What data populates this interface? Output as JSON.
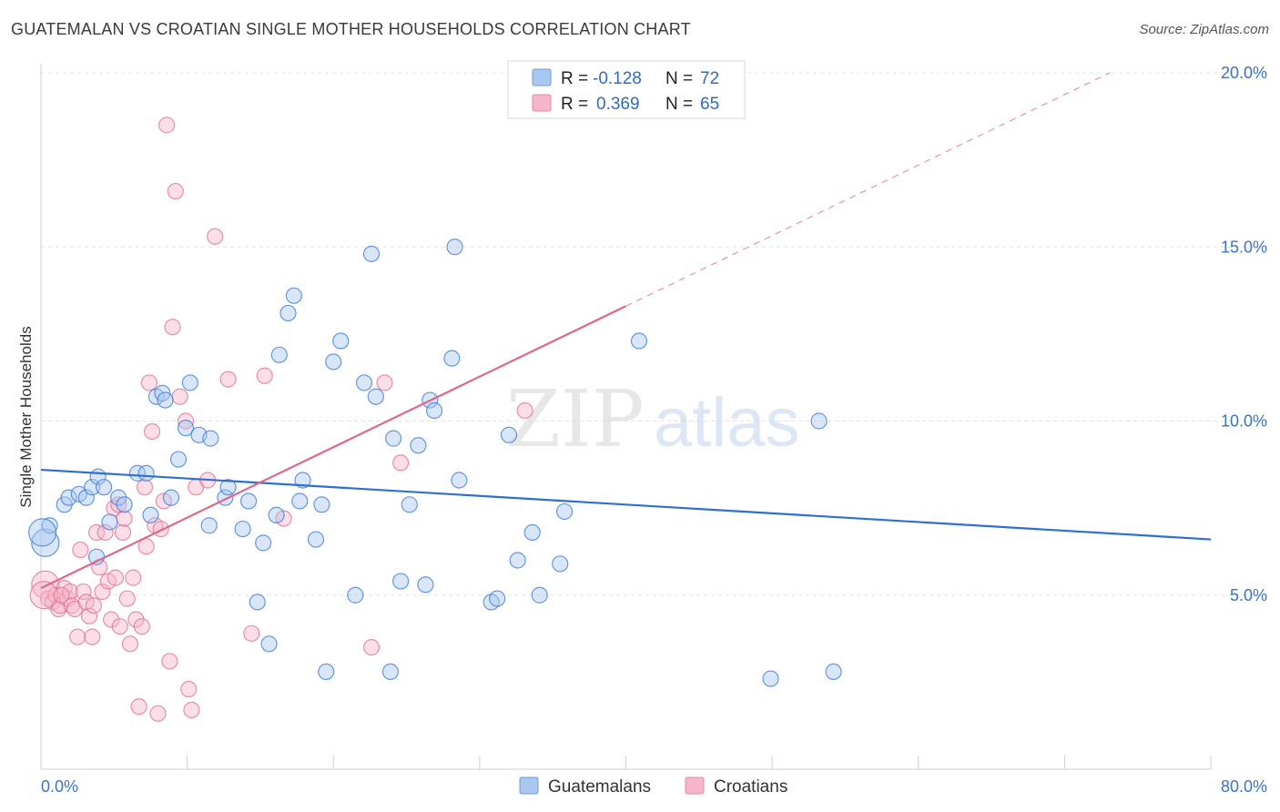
{
  "header": {
    "title": "GUATEMALAN VS CROATIAN SINGLE MOTHER HOUSEHOLDS CORRELATION CHART",
    "source": "Source: ZipAtlas.com"
  },
  "watermark": {
    "zip": "ZIP",
    "atlas": "atlas"
  },
  "legend": {
    "rows": [
      {
        "r_label": "R =",
        "r_value": "-0.128",
        "n_label": "N =",
        "n_value": "72",
        "color": "#a9c8f0"
      },
      {
        "r_label": "R =",
        "r_value": "0.369",
        "n_label": "N =",
        "n_value": "65",
        "color": "#f6b6c9"
      }
    ]
  },
  "bottom_legend": {
    "items": [
      "Guatemalans",
      "Croatians"
    ]
  },
  "chart_data": {
    "type": "scatter",
    "title": "GUATEMALAN VS CROATIAN SINGLE MOTHER HOUSEHOLDS CORRELATION CHART",
    "xlabel": "",
    "ylabel": "Single Mother Households",
    "xlim": [
      0,
      80
    ],
    "ylim": [
      0,
      20
    ],
    "x_tick_labels": [
      "0.0%",
      "80.0%"
    ],
    "y_ticks": [
      5,
      10,
      15,
      20
    ],
    "y_tick_labels": [
      "5.0%",
      "10.0%",
      "15.0%",
      "20.0%"
    ],
    "grid": true,
    "legend_position": "top-center",
    "series": [
      {
        "name": "Guatemalans",
        "color": "#3a78d4",
        "fill": "#a9c8f0",
        "r": -0.128,
        "n": 72,
        "trend": {
          "x": [
            0,
            80
          ],
          "y": [
            8.6,
            6.6
          ]
        },
        "points": [
          [
            0.3,
            6.5
          ],
          [
            0.6,
            7.0
          ],
          [
            1.6,
            7.6
          ],
          [
            1.9,
            7.8
          ],
          [
            2.6,
            7.9
          ],
          [
            3.1,
            7.8
          ],
          [
            3.5,
            8.1
          ],
          [
            3.9,
            8.4
          ],
          [
            3.8,
            6.1
          ],
          [
            4.3,
            8.1
          ],
          [
            4.7,
            7.1
          ],
          [
            5.3,
            7.8
          ],
          [
            5.7,
            7.6
          ],
          [
            6.6,
            8.5
          ],
          [
            7.2,
            8.5
          ],
          [
            7.5,
            7.3
          ],
          [
            7.9,
            10.7
          ],
          [
            8.3,
            10.8
          ],
          [
            8.5,
            10.6
          ],
          [
            8.9,
            7.8
          ],
          [
            9.4,
            8.9
          ],
          [
            9.9,
            9.8
          ],
          [
            10.2,
            11.1
          ],
          [
            10.8,
            9.6
          ],
          [
            11.6,
            9.5
          ],
          [
            11.5,
            7.0
          ],
          [
            12.6,
            7.8
          ],
          [
            12.8,
            8.1
          ],
          [
            13.8,
            6.9
          ],
          [
            14.2,
            7.7
          ],
          [
            14.8,
            4.8
          ],
          [
            15.2,
            6.5
          ],
          [
            15.6,
            3.6
          ],
          [
            16.1,
            7.3
          ],
          [
            16.3,
            11.9
          ],
          [
            16.9,
            13.1
          ],
          [
            17.3,
            13.6
          ],
          [
            17.7,
            7.7
          ],
          [
            17.9,
            8.3
          ],
          [
            18.8,
            6.6
          ],
          [
            19.2,
            7.6
          ],
          [
            19.5,
            2.8
          ],
          [
            20.0,
            11.7
          ],
          [
            20.5,
            12.3
          ],
          [
            21.5,
            5.0
          ],
          [
            22.1,
            11.1
          ],
          [
            22.6,
            14.8
          ],
          [
            22.9,
            10.7
          ],
          [
            23.9,
            2.8
          ],
          [
            24.1,
            9.5
          ],
          [
            24.6,
            5.4
          ],
          [
            25.2,
            7.6
          ],
          [
            25.8,
            9.3
          ],
          [
            26.3,
            5.3
          ],
          [
            26.6,
            10.6
          ],
          [
            26.9,
            10.3
          ],
          [
            28.1,
            11.8
          ],
          [
            28.3,
            15.0
          ],
          [
            28.6,
            8.3
          ],
          [
            30.8,
            4.8
          ],
          [
            31.2,
            4.9
          ],
          [
            32.0,
            9.6
          ],
          [
            32.6,
            6.0
          ],
          [
            33.6,
            6.8
          ],
          [
            34.1,
            5.0
          ],
          [
            35.5,
            5.9
          ],
          [
            35.8,
            7.4
          ],
          [
            40.9,
            12.3
          ],
          [
            49.9,
            2.6
          ],
          [
            53.2,
            10.0
          ],
          [
            54.2,
            2.8
          ],
          [
            0.1,
            6.8
          ]
        ]
      },
      {
        "name": "Croatians",
        "color": "#e0708f",
        "fill": "#f6b6c9",
        "r": 0.369,
        "n": 65,
        "trend": {
          "x": [
            0,
            40
          ],
          "y": [
            5.2,
            13.3
          ]
        },
        "trend_dashed": {
          "x": [
            40,
            80
          ],
          "y": [
            13.3,
            21.4
          ]
        },
        "points": [
          [
            0.3,
            5.3
          ],
          [
            0.5,
            4.9
          ],
          [
            0.8,
            4.8
          ],
          [
            1.0,
            5.0
          ],
          [
            1.2,
            4.6
          ],
          [
            1.3,
            4.7
          ],
          [
            1.6,
            5.2
          ],
          [
            1.8,
            4.9
          ],
          [
            2.0,
            5.1
          ],
          [
            2.1,
            4.7
          ],
          [
            2.3,
            4.6
          ],
          [
            2.5,
            3.8
          ],
          [
            2.7,
            6.3
          ],
          [
            2.9,
            5.1
          ],
          [
            3.1,
            4.8
          ],
          [
            3.3,
            4.4
          ],
          [
            3.5,
            3.8
          ],
          [
            3.6,
            4.7
          ],
          [
            3.8,
            6.8
          ],
          [
            4.0,
            5.8
          ],
          [
            4.2,
            5.1
          ],
          [
            4.4,
            6.8
          ],
          [
            4.6,
            5.4
          ],
          [
            4.8,
            4.3
          ],
          [
            5.0,
            7.5
          ],
          [
            5.1,
            5.5
          ],
          [
            5.3,
            7.6
          ],
          [
            5.4,
            4.1
          ],
          [
            5.6,
            6.8
          ],
          [
            5.7,
            7.2
          ],
          [
            5.9,
            4.9
          ],
          [
            6.1,
            3.6
          ],
          [
            6.3,
            5.5
          ],
          [
            6.5,
            4.3
          ],
          [
            6.7,
            1.8
          ],
          [
            6.9,
            4.1
          ],
          [
            7.1,
            8.1
          ],
          [
            7.2,
            6.4
          ],
          [
            7.4,
            11.1
          ],
          [
            7.6,
            9.7
          ],
          [
            7.8,
            7.0
          ],
          [
            8.0,
            1.6
          ],
          [
            8.2,
            6.9
          ],
          [
            8.4,
            7.7
          ],
          [
            8.6,
            18.5
          ],
          [
            8.8,
            3.1
          ],
          [
            9.0,
            12.7
          ],
          [
            9.2,
            16.6
          ],
          [
            9.5,
            10.7
          ],
          [
            9.9,
            10.0
          ],
          [
            10.1,
            2.3
          ],
          [
            10.3,
            1.7
          ],
          [
            10.6,
            8.1
          ],
          [
            11.4,
            8.3
          ],
          [
            11.9,
            15.3
          ],
          [
            12.8,
            11.2
          ],
          [
            14.4,
            3.9
          ],
          [
            15.3,
            11.3
          ],
          [
            16.6,
            7.2
          ],
          [
            22.6,
            3.5
          ],
          [
            23.5,
            11.1
          ],
          [
            24.6,
            8.8
          ],
          [
            33.1,
            10.3
          ],
          [
            0.2,
            5.0
          ],
          [
            1.4,
            5.0
          ]
        ]
      }
    ]
  }
}
